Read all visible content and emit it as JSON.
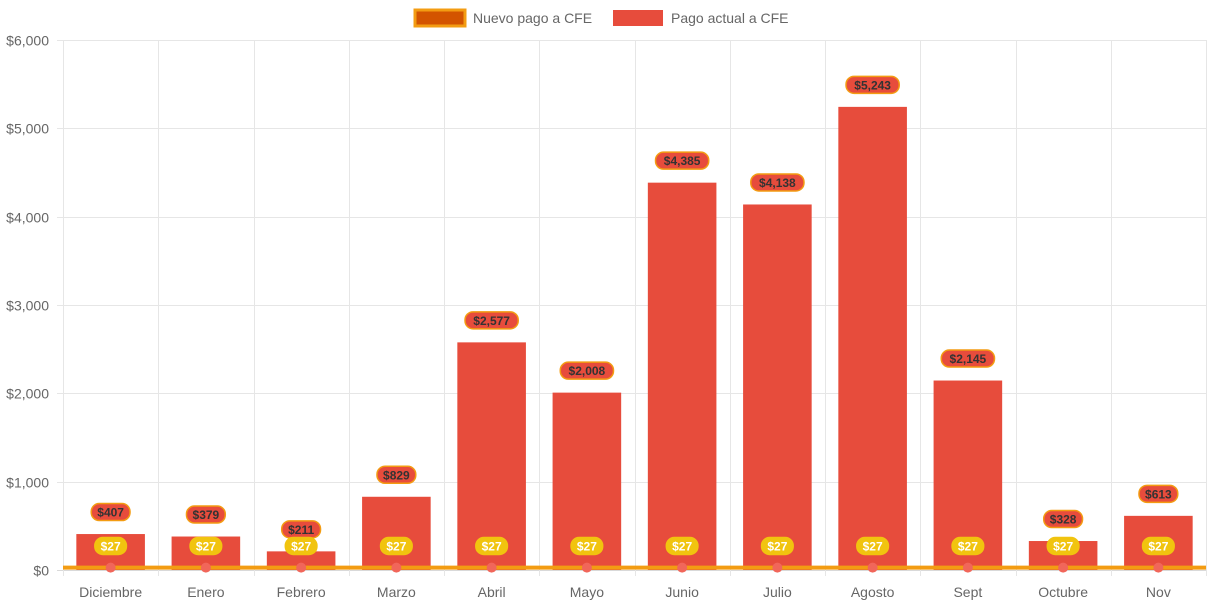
{
  "chart_data": {
    "type": "bar",
    "categories": [
      "Diciembre",
      "Enero",
      "Febrero",
      "Marzo",
      "Abril",
      "Mayo",
      "Junio",
      "Julio",
      "Agosto",
      "Sept",
      "Octubre",
      "Nov"
    ],
    "series": [
      {
        "name": "Nuevo pago a CFE",
        "type": "line",
        "values": [
          27,
          27,
          27,
          27,
          27,
          27,
          27,
          27,
          27,
          27,
          27,
          27
        ],
        "labels": [
          "$27",
          "$27",
          "$27",
          "$27",
          "$27",
          "$27",
          "$27",
          "$27",
          "$27",
          "$27",
          "$27",
          "$27"
        ],
        "color": "#F39C12",
        "legend_fill": "#D35400",
        "point_color": "#F1665A",
        "label_bg": "#F1C40F"
      },
      {
        "name": "Pago actual a CFE",
        "type": "bar",
        "values": [
          407,
          379,
          211,
          829,
          2577,
          2008,
          4385,
          4138,
          5243,
          2145,
          328,
          613
        ],
        "labels": [
          "$407",
          "$379",
          "$211",
          "$829",
          "$2,577",
          "$2,008",
          "$4,385",
          "$4,138",
          "$5,243",
          "$2,145",
          "$328",
          "$613"
        ],
        "color": "#E74C3C",
        "label_border": "#F39C12"
      }
    ],
    "y_ticks": [
      "$0",
      "$1,000",
      "$2,000",
      "$3,000",
      "$4,000",
      "$5,000",
      "$6,000"
    ],
    "ylim": [
      0,
      6000
    ],
    "grid": true,
    "legend_position": "top-center",
    "title": "",
    "xlabel": "",
    "ylabel": ""
  }
}
